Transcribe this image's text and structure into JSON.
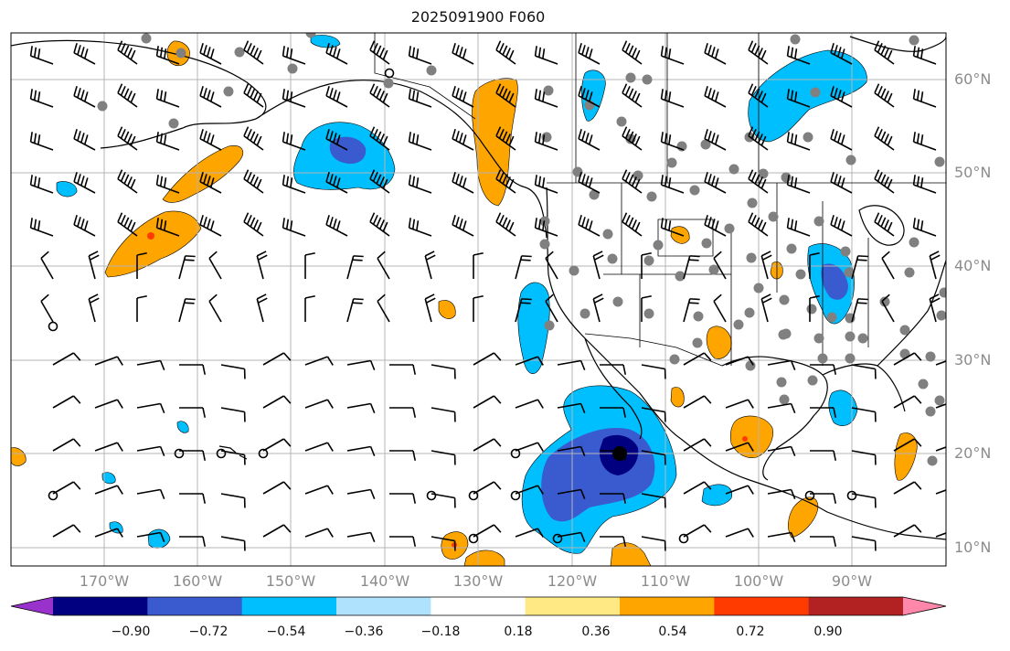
{
  "title": "2025091900 F060",
  "latitude_labels": [
    "60°N",
    "50°N",
    "40°N",
    "30°N",
    "20°N",
    "10°N"
  ],
  "longitude_labels": [
    "170°W",
    "160°W",
    "150°W",
    "140°W",
    "130°W",
    "120°W",
    "110°W",
    "100°W",
    "90°W"
  ],
  "colorbar": {
    "tick_labels": [
      "−0.90",
      "−0.72",
      "−0.54",
      "−0.36",
      "−0.18",
      "0.18",
      "0.36",
      "0.54",
      "0.72",
      "0.90"
    ],
    "colors": [
      "#9932cc",
      "#000080",
      "#3a5bcf",
      "#00bfff",
      "#afe2fc",
      "#ffffff",
      "#ffe985",
      "#ffa500",
      "#ff3b00",
      "#b22222",
      "#ff88aa"
    ]
  },
  "map_colors": {
    "positive_fill": "#ffa500",
    "positive_strong": "#ff3b00",
    "light_blue": "#afe2fc",
    "mid_blue": "#00bfff",
    "deep_blue": "#3a5bcf",
    "navy": "#000080",
    "station_dot": "#808080",
    "gridline": "#b4b4b4"
  },
  "features": [
    "coastlines",
    "country borders",
    "US state boundaries",
    "wind barbs",
    "gray station markers",
    "calm-wind circles"
  ]
}
